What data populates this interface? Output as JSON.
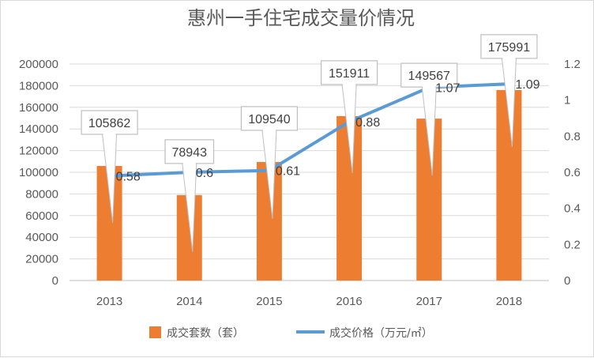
{
  "chart_data": {
    "type": "bar+line",
    "title": "惠州一手住宅成交量价情况",
    "categories": [
      "2013",
      "2014",
      "2015",
      "2016",
      "2017",
      "2018"
    ],
    "series": [
      {
        "name": "成交套数（套）",
        "type": "bar",
        "axis": "left",
        "color": "#ED7D31",
        "values": [
          105862,
          78943,
          109540,
          151911,
          149567,
          175991
        ]
      },
      {
        "name": "成交价格（万元/㎡）",
        "type": "line",
        "axis": "right",
        "color": "#5B9BD5",
        "values": [
          0.58,
          0.6,
          0.61,
          0.88,
          1.07,
          1.09
        ]
      }
    ],
    "y_left": {
      "ylim": [
        0,
        200000
      ],
      "ticks": [
        "0",
        "20000",
        "40000",
        "60000",
        "80000",
        "100000",
        "120000",
        "140000",
        "160000",
        "180000",
        "200000"
      ]
    },
    "y_right": {
      "ylim": [
        0,
        1.2
      ],
      "ticks": [
        "0",
        "0.2",
        "0.4",
        "0.6",
        "0.8",
        "1",
        "1.2"
      ]
    },
    "grid": true,
    "legend": "bottom"
  }
}
